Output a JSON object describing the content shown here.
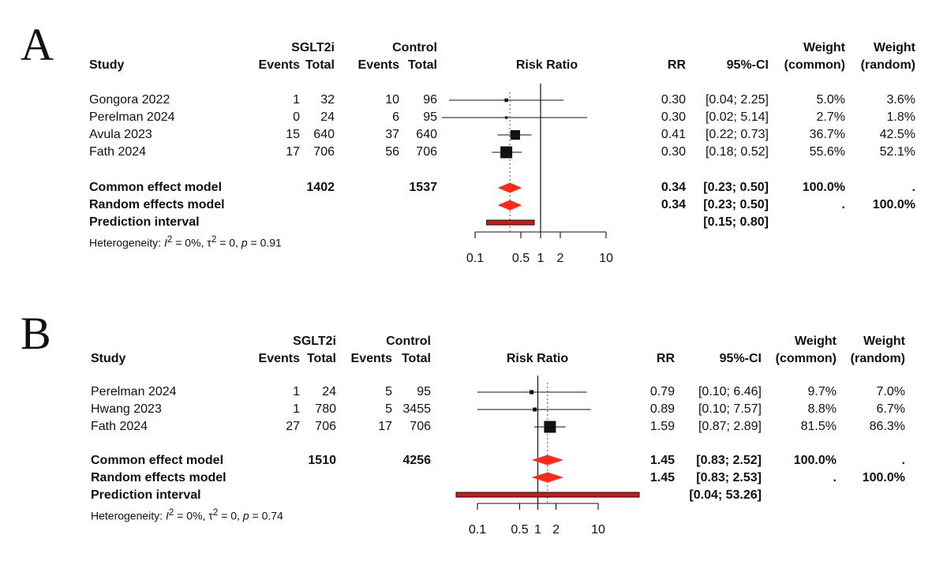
{
  "chart_data": [
    {
      "type": "forest",
      "panel": "A",
      "headers": {
        "group1": "SGLT2i",
        "group2": "Control",
        "study": "Study",
        "events": "Events",
        "total": "Total",
        "plot_title": "Risk Ratio",
        "rr": "RR",
        "ci": "95%-CI",
        "weight": "Weight",
        "common": "(common)",
        "random": "(random)"
      },
      "studies": [
        {
          "name": "Gongora 2022",
          "e1": "1",
          "n1": "32",
          "e2": "10",
          "n2": "96",
          "rr": 0.3,
          "lower": 0.04,
          "upper": 2.25,
          "rr_text": "0.30",
          "ci_text": "[0.04; 2.25]",
          "w_common": "5.0%",
          "w_random": "3.6%",
          "weight": 5.0
        },
        {
          "name": "Perelman 2024",
          "e1": "0",
          "n1": "24",
          "e2": "6",
          "n2": "95",
          "rr": 0.3,
          "lower": 0.02,
          "upper": 5.14,
          "rr_text": "0.30",
          "ci_text": "[0.02; 5.14]",
          "w_common": "2.7%",
          "w_random": "1.8%",
          "weight": 2.7
        },
        {
          "name": "Avula 2023",
          "e1": "15",
          "n1": "640",
          "e2": "37",
          "n2": "640",
          "rr": 0.41,
          "lower": 0.22,
          "upper": 0.73,
          "rr_text": "0.41",
          "ci_text": "[0.22; 0.73]",
          "w_common": "36.7%",
          "w_random": "42.5%",
          "weight": 36.7
        },
        {
          "name": "Fath 2024",
          "e1": "17",
          "n1": "706",
          "e2": "56",
          "n2": "706",
          "rr": 0.3,
          "lower": 0.18,
          "upper": 0.52,
          "rr_text": "0.30",
          "ci_text": "[0.18; 0.52]",
          "w_common": "55.6%",
          "w_random": "52.1%",
          "weight": 55.6
        }
      ],
      "common": {
        "label": "Common effect model",
        "n1": "1402",
        "n2": "1537",
        "rr": 0.34,
        "lower": 0.23,
        "upper": 0.5,
        "rr_text": "0.34",
        "ci_text": "[0.23; 0.50]",
        "w_common": "100.0%",
        "w_random": "."
      },
      "random": {
        "label": "Random effects model",
        "rr": 0.34,
        "lower": 0.23,
        "upper": 0.5,
        "rr_text": "0.34",
        "ci_text": "[0.23; 0.50]",
        "w_common": ".",
        "w_random": "100.0%"
      },
      "prediction": {
        "label": "Prediction interval",
        "lower": 0.15,
        "upper": 0.8,
        "ci_text": "[0.15; 0.80]"
      },
      "heterogeneity": {
        "prefix": "Heterogeneity: ",
        "i2_symbol": "I",
        "i2_sup": "2",
        "i2_val": " = 0%, ",
        "tau_symbol": "τ",
        "tau_sup": "2",
        "tau_val": " = 0, ",
        "p_symbol": "p",
        "p_val": " = 0.91"
      },
      "axis": {
        "ticks": [
          0.1,
          0.5,
          1,
          2,
          10
        ],
        "tick_labels": [
          "0.1",
          "0.5",
          "1",
          "2",
          "10"
        ],
        "xlim": [
          0.1,
          10
        ],
        "scale": "log",
        "null_value": 1
      },
      "colors": {
        "diamond": "#ff2a1a",
        "prediction": "#cc1a1a",
        "line": "#111111"
      }
    },
    {
      "type": "forest",
      "panel": "B",
      "headers": {
        "group1": "SGLT2i",
        "group2": "Control",
        "study": "Study",
        "events": "Events",
        "total": "Total",
        "plot_title": "Risk Ratio",
        "rr": "RR",
        "ci": "95%-CI",
        "weight": "Weight",
        "common": "(common)",
        "random": "(random)"
      },
      "studies": [
        {
          "name": "Perelman 2024",
          "e1": "1",
          "n1": "24",
          "e2": "5",
          "n2": "95",
          "rr": 0.79,
          "lower": 0.1,
          "upper": 6.46,
          "rr_text": "0.79",
          "ci_text": "[0.10; 6.46]",
          "w_common": "9.7%",
          "w_random": "7.0%",
          "weight": 9.7
        },
        {
          "name": "Hwang 2023",
          "e1": "1",
          "n1": "780",
          "e2": "5",
          "n2": "3455",
          "rr": 0.89,
          "lower": 0.1,
          "upper": 7.57,
          "rr_text": "0.89",
          "ci_text": "[0.10; 7.57]",
          "w_common": "8.8%",
          "w_random": "6.7%",
          "weight": 8.8
        },
        {
          "name": "Fath 2024",
          "e1": "27",
          "n1": "706",
          "e2": "17",
          "n2": "706",
          "rr": 1.59,
          "lower": 0.87,
          "upper": 2.89,
          "rr_text": "1.59",
          "ci_text": "[0.87; 2.89]",
          "w_common": "81.5%",
          "w_random": "86.3%",
          "weight": 81.5
        }
      ],
      "common": {
        "label": "Common effect model",
        "n1": "1510",
        "n2": "4256",
        "rr": 1.45,
        "lower": 0.83,
        "upper": 2.52,
        "rr_text": "1.45",
        "ci_text": "[0.83; 2.52]",
        "w_common": "100.0%",
        "w_random": "."
      },
      "random": {
        "label": "Random effects model",
        "rr": 1.45,
        "lower": 0.83,
        "upper": 2.53,
        "rr_text": "1.45",
        "ci_text": "[0.83; 2.53]",
        "w_common": ".",
        "w_random": "100.0%"
      },
      "prediction": {
        "label": "Prediction interval",
        "lower": 0.04,
        "upper": 53.26,
        "ci_text": "[0.04; 53.26]"
      },
      "heterogeneity": {
        "prefix": "Heterogeneity: ",
        "i2_symbol": "I",
        "i2_sup": "2",
        "i2_val": " = 0%, ",
        "tau_symbol": "τ",
        "tau_sup": "2",
        "tau_val": " = 0, ",
        "p_symbol": "p",
        "p_val": " = 0.74"
      },
      "axis": {
        "ticks": [
          0.1,
          0.5,
          1,
          2,
          10
        ],
        "tick_labels": [
          "0.1",
          "0.5",
          "1",
          "2",
          "10"
        ],
        "xlim": [
          0.1,
          10
        ],
        "scale": "log",
        "null_value": 1
      },
      "colors": {
        "diamond": "#ff2a1a",
        "prediction": "#cc1a1a",
        "line": "#111111"
      }
    }
  ]
}
